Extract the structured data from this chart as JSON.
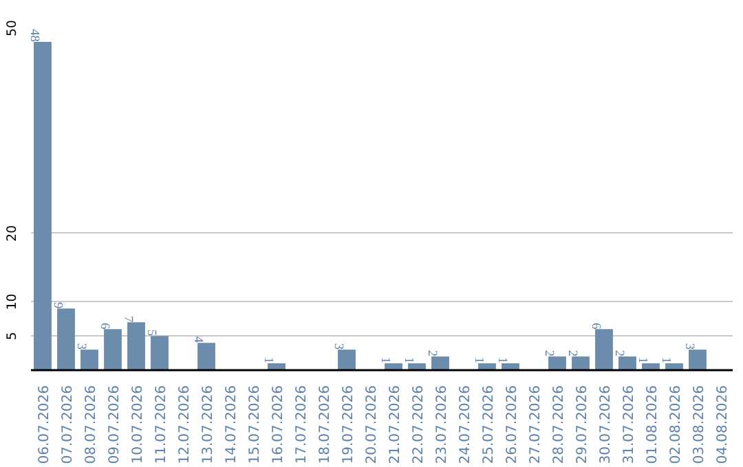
{
  "chart_data": {
    "type": "bar",
    "categories": [
      "06.07.2026",
      "07.07.2026",
      "08.07.2026",
      "09.07.2026",
      "10.07.2026",
      "11.07.2026",
      "12.07.2026",
      "13.07.2026",
      "14.07.2026",
      "15.07.2026",
      "16.07.2026",
      "17.07.2026",
      "18.07.2026",
      "19.07.2026",
      "20.07.2026",
      "21.07.2026",
      "22.07.2026",
      "23.07.2026",
      "24.07.2026",
      "25.07.2026",
      "26.07.2026",
      "27.07.2026",
      "28.07.2026",
      "29.07.2026",
      "30.07.2026",
      "31.07.2026",
      "01.08.2026",
      "02.08.2026",
      "03.08.2026",
      "04.08.2026"
    ],
    "values": [
      48,
      9,
      3,
      6,
      7,
      5,
      null,
      4,
      null,
      null,
      1,
      null,
      null,
      3,
      null,
      1,
      1,
      2,
      null,
      1,
      1,
      null,
      2,
      2,
      6,
      2,
      1,
      1,
      3,
      null
    ],
    "color": "#6b8cac",
    "ylim": [
      0,
      50
    ],
    "yticks": [
      5,
      10,
      20,
      50
    ],
    "grid": "y",
    "data_labels": true
  }
}
